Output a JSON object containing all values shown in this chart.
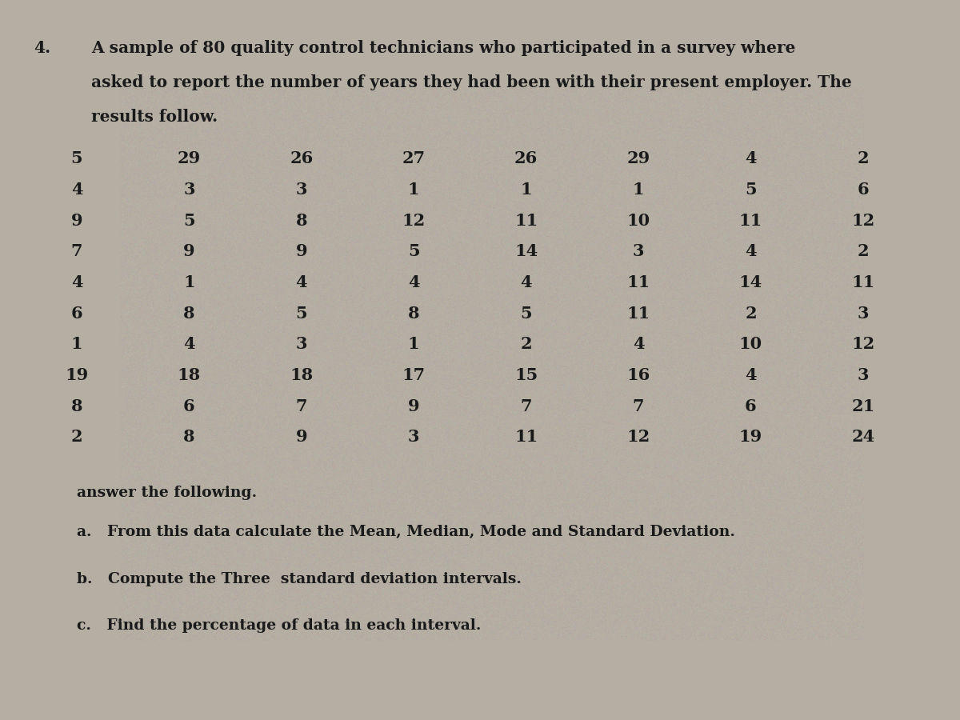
{
  "title_number": "4.",
  "title_text_line1": "A sample of 80 quality control technicians who participated in a survey where",
  "title_text_line2": "asked to report the number of years they had been with their present employer. The",
  "title_text_line3": "results follow.",
  "table_data": [
    [
      5,
      29,
      26,
      27,
      26,
      29,
      4,
      2
    ],
    [
      4,
      3,
      3,
      1,
      1,
      1,
      5,
      6
    ],
    [
      9,
      5,
      8,
      12,
      11,
      10,
      11,
      12
    ],
    [
      7,
      9,
      9,
      5,
      14,
      3,
      4,
      2
    ],
    [
      4,
      1,
      4,
      4,
      4,
      11,
      14,
      11
    ],
    [
      6,
      8,
      5,
      8,
      5,
      11,
      2,
      3
    ],
    [
      1,
      4,
      3,
      1,
      2,
      4,
      10,
      12
    ],
    [
      19,
      18,
      18,
      17,
      15,
      16,
      4,
      3
    ],
    [
      8,
      6,
      7,
      9,
      7,
      7,
      6,
      21
    ],
    [
      2,
      8,
      9,
      3,
      11,
      12,
      19,
      24
    ]
  ],
  "questions_intro": "answer the following.",
  "question_a": "a.   From this data calculate the Mean, Median, Mode and Standard Deviation.",
  "question_b": "b.   Compute the Three  standard deviation intervals.",
  "question_c": "c.   Find the percentage of data in each interval.",
  "bg_color": "#b5aea3",
  "text_color": "#1a1a1a",
  "font_family": "serif",
  "title_fontsize": 14.5,
  "data_fontsize": 15,
  "question_fontsize": 13.5
}
